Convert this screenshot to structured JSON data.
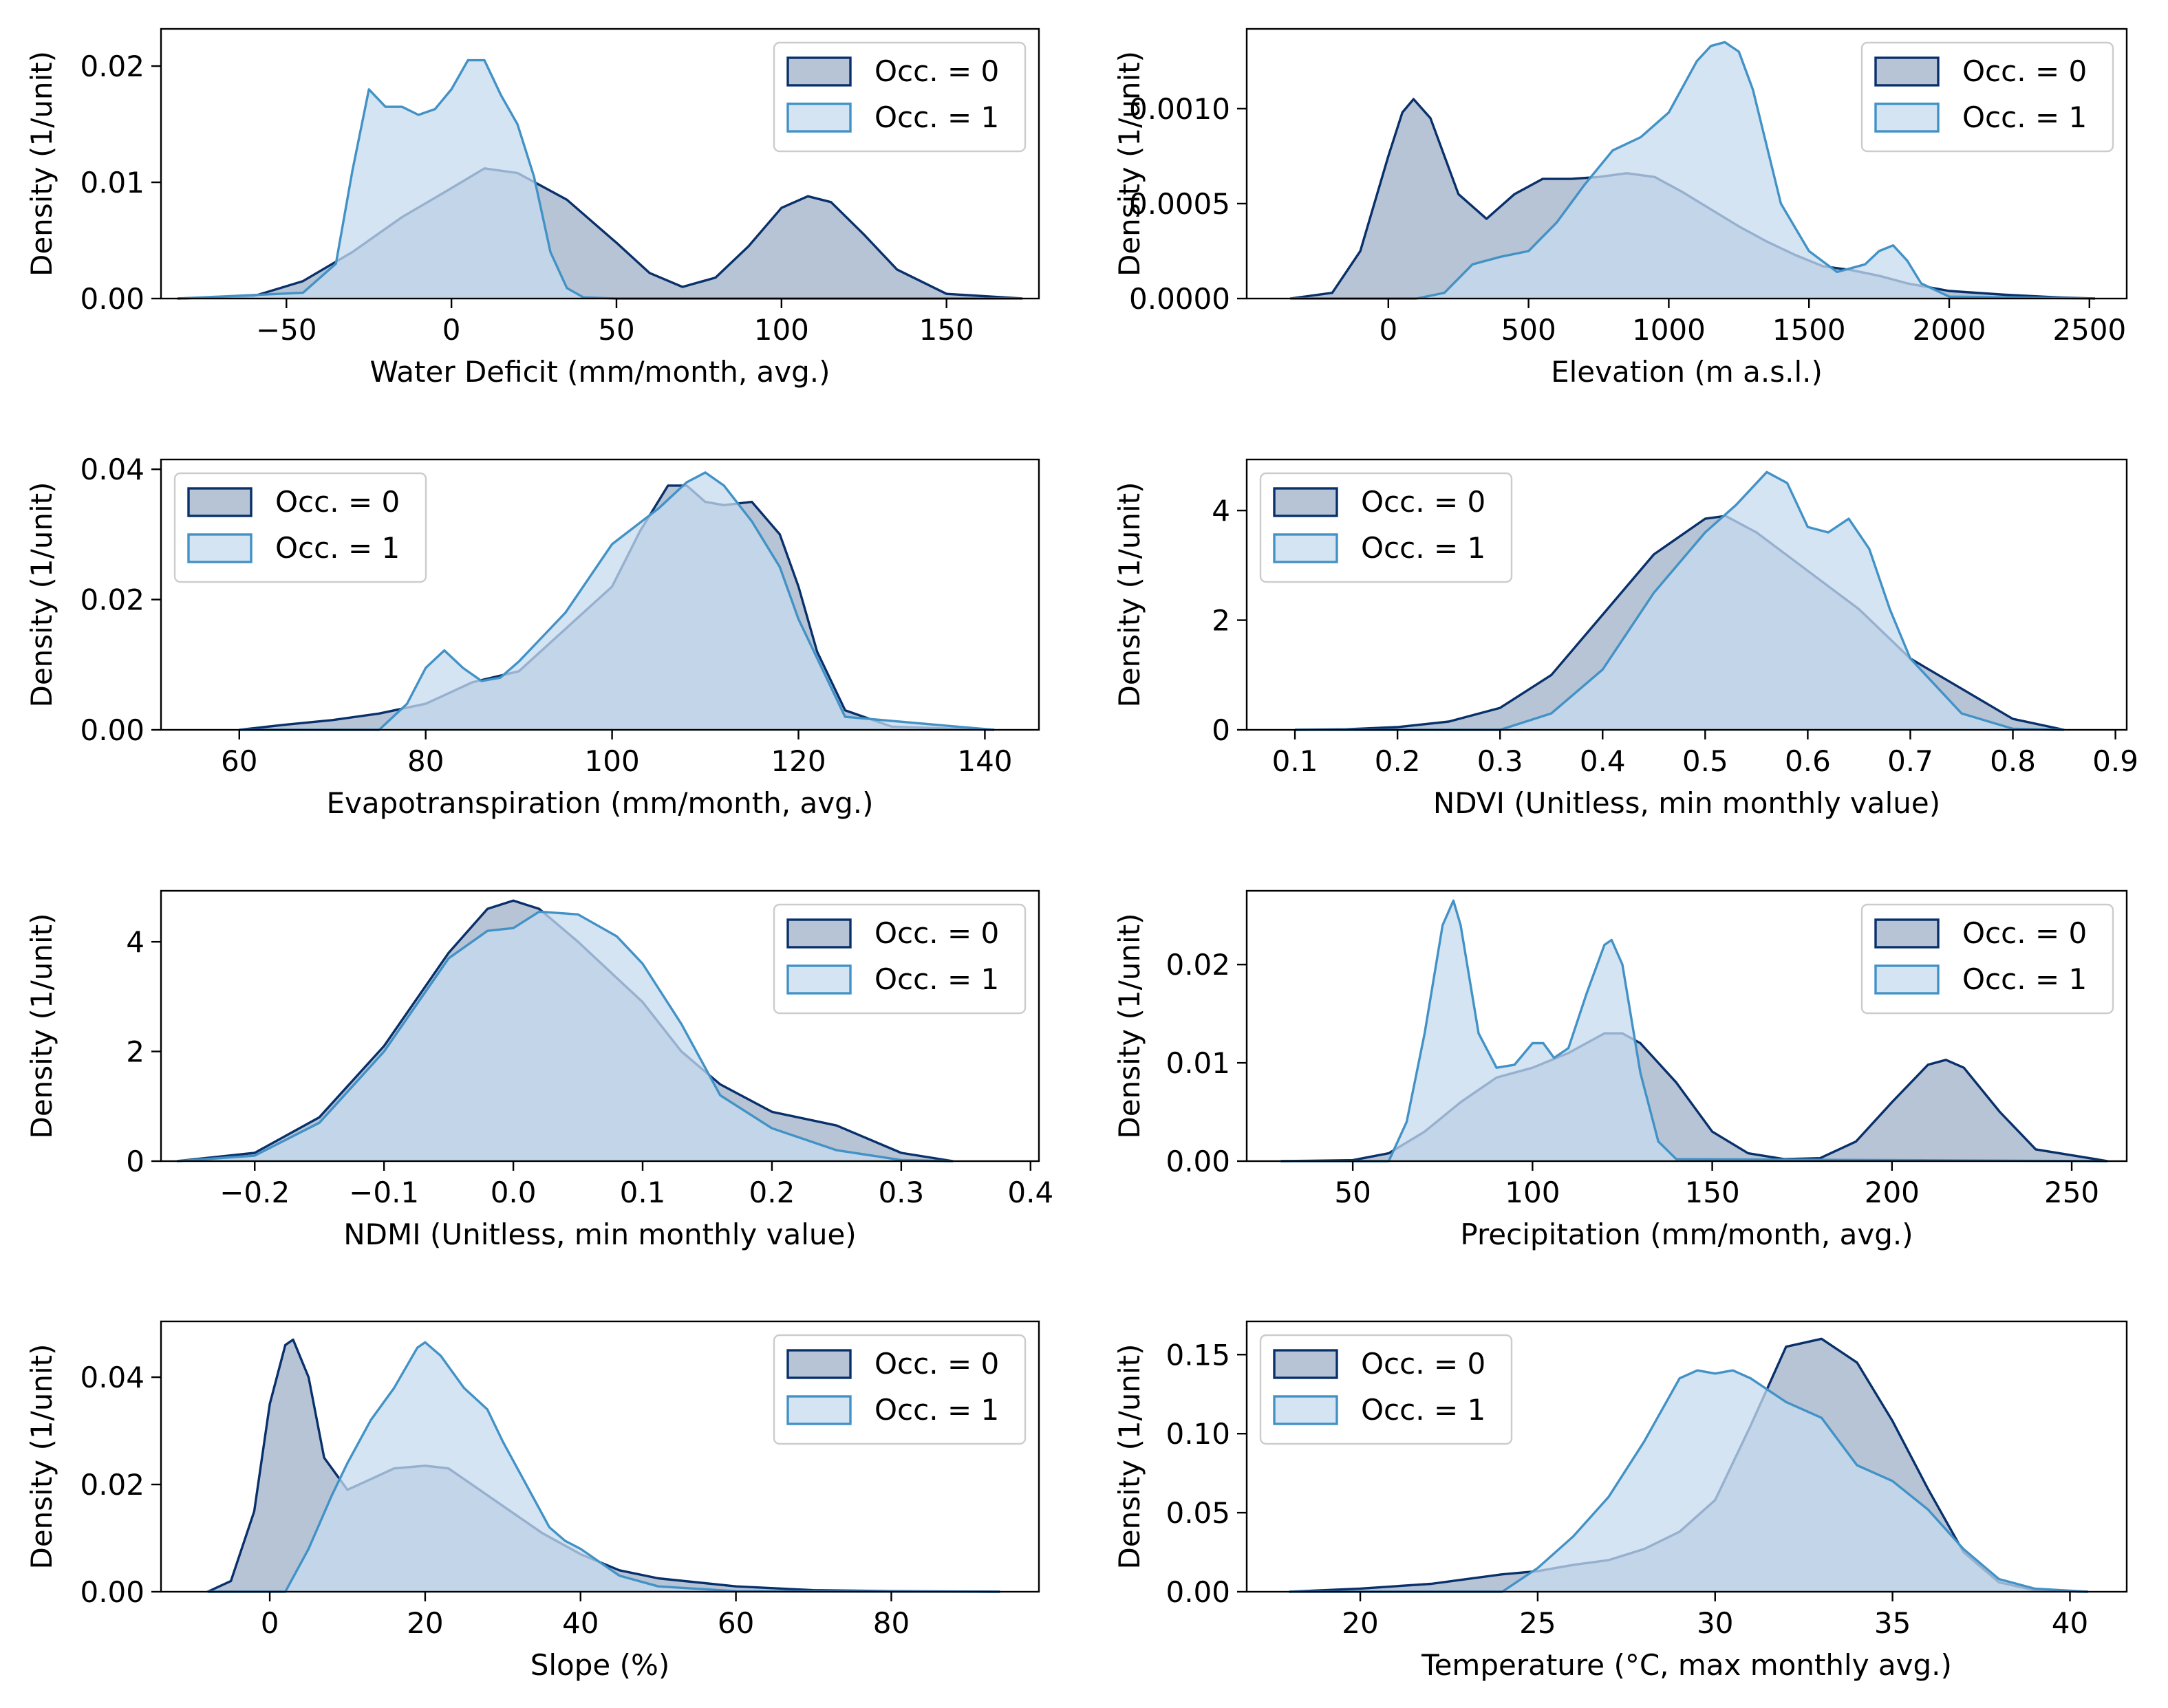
{
  "colors": {
    "occ0_line": "#08306b",
    "occ0_fill": "#9fb0c8",
    "occ1_line": "#4292c6",
    "occ1_fill": "#c6dbef"
  },
  "legend_labels": [
    "Occ. = 0",
    "Occ. = 1"
  ],
  "chart_data": [
    {
      "type": "area",
      "xlabel": "Water Deficit (mm/month, avg.)",
      "ylabel": "Density (1/unit)",
      "xlim": [
        -88,
        178
      ],
      "ylim": [
        0,
        0.0232
      ],
      "xticks": [
        -50,
        0,
        50,
        100,
        150
      ],
      "xtick_labels": [
        "−50",
        "0",
        "50",
        "100",
        "150"
      ],
      "yticks": [
        0,
        0.01,
        0.02
      ],
      "ytick_labels": [
        "0.00",
        "0.01",
        "0.02"
      ],
      "legend_position": "upper right",
      "series": [
        {
          "name": "Occ. = 0",
          "x": [
            -83,
            -60,
            -45,
            -30,
            -15,
            0,
            10,
            20,
            35,
            50,
            60,
            70,
            80,
            90,
            100,
            108,
            115,
            125,
            135,
            150,
            173
          ],
          "y": [
            0,
            0.0002,
            0.0015,
            0.004,
            0.007,
            0.0095,
            0.0112,
            0.0108,
            0.0085,
            0.0048,
            0.0022,
            0.001,
            0.0018,
            0.0045,
            0.0078,
            0.0088,
            0.0083,
            0.0055,
            0.0025,
            0.0004,
            0
          ]
        },
        {
          "name": "Occ. = 1",
          "x": [
            -83,
            -45,
            -35,
            -30,
            -25,
            -20,
            -15,
            -10,
            -5,
            0,
            5,
            10,
            15,
            20,
            25,
            30,
            35,
            40,
            50,
            173
          ],
          "y": [
            0,
            0.0005,
            0.003,
            0.011,
            0.018,
            0.0165,
            0.0165,
            0.0158,
            0.0163,
            0.018,
            0.0205,
            0.0205,
            0.0175,
            0.015,
            0.0105,
            0.004,
            0.0009,
            0.0001,
            0,
            0
          ]
        }
      ]
    },
    {
      "type": "area",
      "xlabel": "Elevation (m a.s.l.)",
      "ylabel": "Density (1/unit)",
      "xlim": [
        -505,
        2633
      ],
      "ylim": [
        0,
        0.00142
      ],
      "xticks": [
        0,
        500,
        1000,
        1500,
        2000,
        2500
      ],
      "xtick_labels": [
        "0",
        "500",
        "1000",
        "1500",
        "2000",
        "2500"
      ],
      "yticks": [
        0,
        0.0005,
        0.001
      ],
      "ytick_labels": [
        "0.0000",
        "0.0005",
        "0.0010"
      ],
      "legend_position": "upper right",
      "series": [
        {
          "name": "Occ. = 0",
          "x": [
            -350,
            -200,
            -100,
            0,
            50,
            90,
            150,
            250,
            350,
            450,
            550,
            650,
            750,
            850,
            950,
            1050,
            1150,
            1250,
            1350,
            1450,
            1550,
            1650,
            1750,
            1850,
            2000,
            2200,
            2400,
            2520
          ],
          "y": [
            0,
            3e-05,
            0.00025,
            0.00075,
            0.00098,
            0.00105,
            0.00095,
            0.00055,
            0.00042,
            0.00055,
            0.00063,
            0.00063,
            0.00064,
            0.00066,
            0.00064,
            0.00056,
            0.00047,
            0.00038,
            0.0003,
            0.00023,
            0.00017,
            0.00015,
            0.00012,
            8e-05,
            4e-05,
            2e-05,
            5e-06,
            0
          ]
        },
        {
          "name": "Occ. = 1",
          "x": [
            -350,
            100,
            200,
            300,
            400,
            500,
            600,
            700,
            800,
            900,
            1000,
            1100,
            1150,
            1200,
            1250,
            1300,
            1400,
            1500,
            1600,
            1700,
            1750,
            1800,
            1850,
            1900,
            2000,
            2520
          ],
          "y": [
            0,
            0,
            3e-05,
            0.00018,
            0.00022,
            0.00025,
            0.0004,
            0.0006,
            0.00078,
            0.00085,
            0.00098,
            0.00125,
            0.00133,
            0.00135,
            0.0013,
            0.0011,
            0.0005,
            0.00025,
            0.00014,
            0.00018,
            0.00025,
            0.00028,
            0.0002,
            8e-05,
            1e-05,
            0
          ]
        }
      ]
    },
    {
      "type": "area",
      "xlabel": "Evapotranspiration (mm/month, avg.)",
      "ylabel": "Density (1/unit)",
      "xlim": [
        51.6,
        145.8
      ],
      "ylim": [
        0,
        0.0415
      ],
      "xticks": [
        60,
        80,
        100,
        120,
        140
      ],
      "xtick_labels": [
        "60",
        "80",
        "100",
        "120",
        "140"
      ],
      "yticks": [
        0,
        0.02,
        0.04
      ],
      "ytick_labels": [
        "0.00",
        "0.02",
        "0.04"
      ],
      "legend_position": "upper left",
      "series": [
        {
          "name": "Occ. = 0",
          "x": [
            60,
            65,
            70,
            75,
            80,
            85,
            90,
            95,
            100,
            103,
            106,
            108,
            110,
            112,
            115,
            118,
            120,
            122,
            125,
            130,
            141
          ],
          "y": [
            0,
            0.0008,
            0.0015,
            0.0025,
            0.004,
            0.0073,
            0.009,
            0.0155,
            0.022,
            0.0305,
            0.0375,
            0.0375,
            0.035,
            0.0345,
            0.035,
            0.03,
            0.022,
            0.012,
            0.003,
            0.0005,
            0
          ]
        },
        {
          "name": "Occ. = 1",
          "x": [
            60,
            75,
            78,
            80,
            82,
            84,
            86,
            88,
            90,
            95,
            100,
            105,
            108,
            110,
            112,
            115,
            118,
            120,
            125,
            141
          ],
          "y": [
            0,
            0,
            0.004,
            0.0095,
            0.0122,
            0.0095,
            0.0075,
            0.008,
            0.0105,
            0.018,
            0.0285,
            0.034,
            0.038,
            0.0395,
            0.0375,
            0.032,
            0.025,
            0.017,
            0.002,
            0
          ]
        }
      ]
    },
    {
      "type": "area",
      "xlabel": "NDVI (Unitless, min monthly value)",
      "ylabel": "Density (1/unit)",
      "xlim": [
        0.053,
        0.911
      ],
      "ylim": [
        0,
        4.93
      ],
      "xticks": [
        0.1,
        0.2,
        0.3,
        0.4,
        0.5,
        0.6,
        0.7,
        0.8,
        0.9
      ],
      "xtick_labels": [
        "0.1",
        "0.2",
        "0.3",
        "0.4",
        "0.5",
        "0.6",
        "0.7",
        "0.8",
        "0.9"
      ],
      "yticks": [
        0,
        2,
        4
      ],
      "ytick_labels": [
        "0",
        "2",
        "4"
      ],
      "legend_position": "upper left",
      "series": [
        {
          "name": "Occ. = 0",
          "x": [
            0.1,
            0.15,
            0.2,
            0.25,
            0.3,
            0.35,
            0.4,
            0.45,
            0.5,
            0.52,
            0.55,
            0.6,
            0.65,
            0.7,
            0.75,
            0.8,
            0.85
          ],
          "y": [
            0,
            0.01,
            0.05,
            0.15,
            0.4,
            1.0,
            2.1,
            3.2,
            3.85,
            3.9,
            3.6,
            2.9,
            2.2,
            1.3,
            0.75,
            0.2,
            0
          ]
        },
        {
          "name": "Occ. = 1",
          "x": [
            0.1,
            0.3,
            0.35,
            0.4,
            0.45,
            0.5,
            0.53,
            0.56,
            0.58,
            0.6,
            0.62,
            0.64,
            0.66,
            0.68,
            0.7,
            0.75,
            0.8,
            0.85
          ],
          "y": [
            0,
            0,
            0.3,
            1.1,
            2.5,
            3.6,
            4.1,
            4.7,
            4.5,
            3.7,
            3.6,
            3.85,
            3.3,
            2.2,
            1.3,
            0.3,
            0.02,
            0
          ]
        }
      ]
    },
    {
      "type": "area",
      "xlabel": "NDMI (Unitless, min monthly value)",
      "ylabel": "Density (1/unit)",
      "xlim": [
        -0.2725,
        0.4065
      ],
      "ylim": [
        0,
        4.93
      ],
      "xticks": [
        -0.2,
        -0.1,
        0,
        0.1,
        0.2,
        0.3,
        0.4
      ],
      "xtick_labels": [
        "−0.2",
        "−0.1",
        "0.0",
        "0.1",
        "0.2",
        "0.3",
        "0.4"
      ],
      "yticks": [
        0,
        2,
        4
      ],
      "ytick_labels": [
        "0",
        "2",
        "4"
      ],
      "legend_position": "upper right",
      "series": [
        {
          "name": "Occ. = 0",
          "x": [
            -0.26,
            -0.2,
            -0.15,
            -0.1,
            -0.05,
            -0.02,
            0,
            0.02,
            0.05,
            0.1,
            0.13,
            0.16,
            0.2,
            0.25,
            0.3,
            0.34
          ],
          "y": [
            0,
            0.15,
            0.8,
            2.1,
            3.8,
            4.6,
            4.75,
            4.6,
            4.0,
            2.9,
            2.0,
            1.4,
            0.9,
            0.65,
            0.15,
            0
          ]
        },
        {
          "name": "Occ. = 1",
          "x": [
            -0.26,
            -0.2,
            -0.15,
            -0.1,
            -0.05,
            -0.02,
            0,
            0.02,
            0.05,
            0.08,
            0.1,
            0.13,
            0.16,
            0.2,
            0.25,
            0.3,
            0.34
          ],
          "y": [
            0,
            0.1,
            0.7,
            2.0,
            3.7,
            4.2,
            4.25,
            4.55,
            4.5,
            4.1,
            3.6,
            2.5,
            1.2,
            0.6,
            0.2,
            0.02,
            0
          ]
        }
      ]
    },
    {
      "type": "area",
      "xlabel": "Precipitation (mm/month, avg.)",
      "ylabel": "Density (1/unit)",
      "xlim": [
        20.5,
        265.3
      ],
      "ylim": [
        0,
        0.0275
      ],
      "xticks": [
        50,
        100,
        150,
        200,
        250
      ],
      "xtick_labels": [
        "50",
        "100",
        "150",
        "200",
        "250"
      ],
      "yticks": [
        0,
        0.01,
        0.02
      ],
      "ytick_labels": [
        "0.00",
        "0.01",
        "0.02"
      ],
      "legend_position": "upper right",
      "series": [
        {
          "name": "Occ. = 0",
          "x": [
            30,
            50,
            60,
            70,
            80,
            90,
            100,
            110,
            120,
            125,
            130,
            140,
            150,
            160,
            170,
            180,
            190,
            200,
            210,
            215,
            220,
            230,
            240,
            260
          ],
          "y": [
            0,
            0.0001,
            0.0008,
            0.003,
            0.006,
            0.0085,
            0.0095,
            0.011,
            0.013,
            0.013,
            0.012,
            0.008,
            0.003,
            0.0008,
            0.0002,
            0.0003,
            0.002,
            0.006,
            0.0098,
            0.0103,
            0.0095,
            0.005,
            0.0012,
            0
          ]
        },
        {
          "name": "Occ. = 1",
          "x": [
            30,
            60,
            65,
            70,
            75,
            78,
            80,
            85,
            90,
            95,
            100,
            103,
            106,
            110,
            115,
            120,
            122,
            125,
            130,
            135,
            140,
            260
          ],
          "y": [
            0,
            0,
            0.004,
            0.013,
            0.024,
            0.0265,
            0.024,
            0.013,
            0.0095,
            0.0098,
            0.012,
            0.012,
            0.0105,
            0.0115,
            0.017,
            0.022,
            0.0225,
            0.02,
            0.009,
            0.002,
            0.0002,
            0
          ]
        }
      ]
    },
    {
      "type": "area",
      "xlabel": "Slope (%)",
      "ylabel": "Density (1/unit)",
      "xlim": [
        -14,
        99
      ],
      "ylim": [
        0,
        0.0504
      ],
      "xticks": [
        0,
        20,
        40,
        60,
        80
      ],
      "xtick_labels": [
        "0",
        "20",
        "40",
        "60",
        "80"
      ],
      "yticks": [
        0,
        0.02,
        0.04
      ],
      "ytick_labels": [
        "0.00",
        "0.02",
        "0.04"
      ],
      "legend_position": "upper right",
      "series": [
        {
          "name": "Occ. = 0",
          "x": [
            -8,
            -5,
            -2,
            0,
            2,
            3,
            5,
            7,
            10,
            13,
            16,
            20,
            23,
            26,
            30,
            35,
            40,
            45,
            50,
            60,
            70,
            80,
            94
          ],
          "y": [
            0,
            0.002,
            0.015,
            0.035,
            0.046,
            0.047,
            0.04,
            0.025,
            0.019,
            0.021,
            0.023,
            0.0235,
            0.023,
            0.02,
            0.016,
            0.011,
            0.007,
            0.004,
            0.0025,
            0.001,
            0.0003,
            0.0001,
            0
          ]
        },
        {
          "name": "Occ. = 1",
          "x": [
            -8,
            2,
            5,
            8,
            10,
            13,
            16,
            19,
            20,
            22,
            25,
            28,
            30,
            33,
            36,
            38,
            40,
            43,
            45,
            50,
            60,
            94
          ],
          "y": [
            0,
            0,
            0.008,
            0.018,
            0.024,
            0.032,
            0.038,
            0.0455,
            0.0465,
            0.044,
            0.038,
            0.034,
            0.028,
            0.02,
            0.012,
            0.0095,
            0.008,
            0.005,
            0.003,
            0.001,
            0.0001,
            0
          ]
        }
      ]
    },
    {
      "type": "area",
      "xlabel": "Temperature (°C, max monthly avg.)",
      "ylabel": "Density (1/unit)",
      "xlim": [
        16.8,
        41.6
      ],
      "ylim": [
        0,
        0.171
      ],
      "xticks": [
        20,
        25,
        30,
        35,
        40
      ],
      "xtick_labels": [
        "20",
        "25",
        "30",
        "35",
        "40"
      ],
      "yticks": [
        0,
        0.05,
        0.1,
        0.15
      ],
      "ytick_labels": [
        "0.00",
        "0.05",
        "0.10",
        "0.15"
      ],
      "legend_position": "upper left",
      "series": [
        {
          "name": "Occ. = 0",
          "x": [
            18,
            20,
            22,
            23,
            24,
            25,
            26,
            27,
            28,
            29,
            30,
            31,
            32,
            33,
            34,
            35,
            36,
            37,
            38,
            39,
            40.5
          ],
          "y": [
            0,
            0.002,
            0.005,
            0.008,
            0.011,
            0.013,
            0.017,
            0.02,
            0.027,
            0.038,
            0.058,
            0.105,
            0.155,
            0.16,
            0.145,
            0.108,
            0.065,
            0.025,
            0.006,
            0.001,
            0
          ]
        },
        {
          "name": "Occ. = 1",
          "x": [
            18,
            24,
            25,
            26,
            27,
            28,
            29,
            29.5,
            30,
            30.5,
            31,
            32,
            33,
            34,
            35,
            36,
            37,
            38,
            39,
            40.5
          ],
          "y": [
            0,
            0,
            0.015,
            0.035,
            0.06,
            0.095,
            0.135,
            0.14,
            0.138,
            0.14,
            0.135,
            0.12,
            0.11,
            0.08,
            0.07,
            0.052,
            0.027,
            0.008,
            0.002,
            0
          ]
        }
      ]
    }
  ]
}
